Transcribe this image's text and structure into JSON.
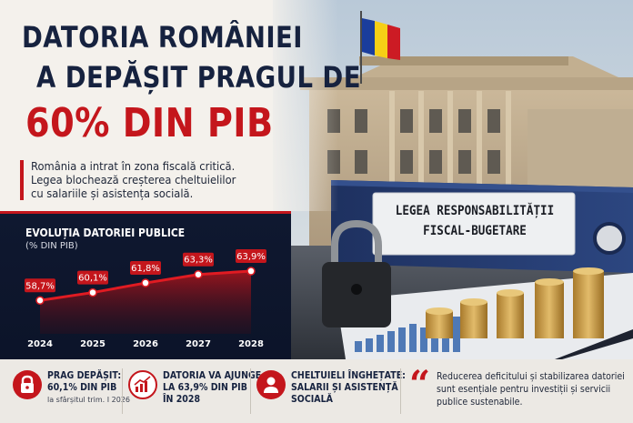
{
  "headline": {
    "line1": "DATORIA ROMÂNIEI",
    "line2": "A DEPĂȘIT PRAGUL DE",
    "line3": "60% DIN PIB"
  },
  "subtitle": {
    "line1": "România a intrat în zona fiscală critică.",
    "line2": "Legea blochează creșterea cheltuielilor",
    "line3": "cu salariile și asistența socială."
  },
  "binder_label": {
    "line1": "LEGEA RESPONSABILITĂȚII",
    "line2": "FISCAL-BUGETARE"
  },
  "chart_data": {
    "type": "line",
    "title": "EVOLUȚIA DATORIEI PUBLICE",
    "subtitle": "(% DIN PIB)",
    "categories": [
      "2024",
      "2025",
      "2026",
      "2027",
      "2028"
    ],
    "values": [
      58.7,
      60.1,
      61.8,
      63.3,
      63.9
    ],
    "labels": [
      "58,7%",
      "60,1%",
      "61,8%",
      "63,3%",
      "63,9%"
    ],
    "ylim": [
      56,
      66
    ],
    "grid": false,
    "line_color": "#e01b22"
  },
  "cards": [
    {
      "title1": "PRAG DEPĂȘIT:",
      "title2": "60,1% DIN PIB",
      "small": "la sfârșitul trim. I 2026",
      "icon": "lock-icon"
    },
    {
      "title1": "DATORIA VA AJUNGE",
      "title2": "LA 63,9% DIN PIB",
      "title3": "ÎN 2028",
      "icon": "bar-chart-icon"
    },
    {
      "title1": "CHELTUIELI ÎNGHEȚATE:",
      "title2": "SALARII ȘI ASISTENȚĂ",
      "title3": "SOCIALĂ",
      "icon": "person-icon"
    }
  ],
  "quote": {
    "line1": "Reducerea deficitului și stabilizarea datoriei",
    "line2": "sunt esențiale pentru investiții și servicii",
    "line3": "publice sustenabile."
  },
  "colors": {
    "accent": "#c4161c",
    "navy": "#16223f",
    "binder": "#243a6b"
  }
}
